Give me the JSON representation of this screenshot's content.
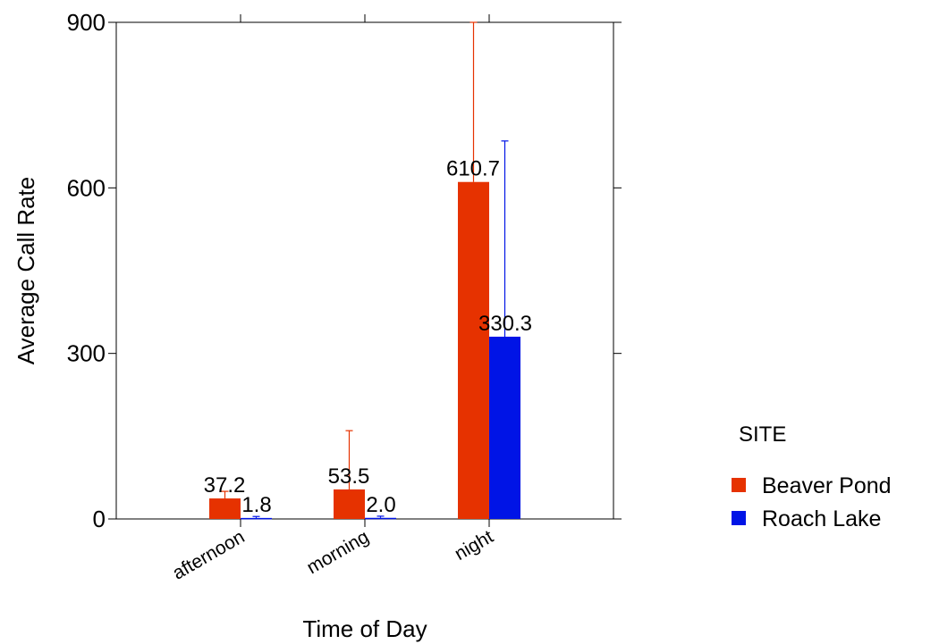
{
  "chart_data": {
    "type": "bar",
    "xlabel": "Time of Day",
    "ylabel": "Average Call Rate",
    "categories": [
      "afternoon",
      "morning",
      "night"
    ],
    "ylim": [
      0,
      900
    ],
    "yticks": [
      0,
      300,
      600,
      900
    ],
    "grid": false,
    "legend_position": "right",
    "legend_title": "SITE",
    "series": [
      {
        "name": "Beaver Pond",
        "color": "#e63200",
        "values": [
          37.2,
          53.5,
          610.7
        ],
        "labels": [
          "37.2",
          "53.5",
          "610.7"
        ],
        "error_upper": [
          50,
          160,
          900
        ]
      },
      {
        "name": "Roach Lake",
        "color": "#0014e6",
        "values": [
          1.8,
          2.0,
          330.3
        ],
        "labels": [
          "1.8",
          "2.0",
          "330.3"
        ],
        "error_upper": [
          4.5,
          5,
          685
        ]
      }
    ]
  }
}
